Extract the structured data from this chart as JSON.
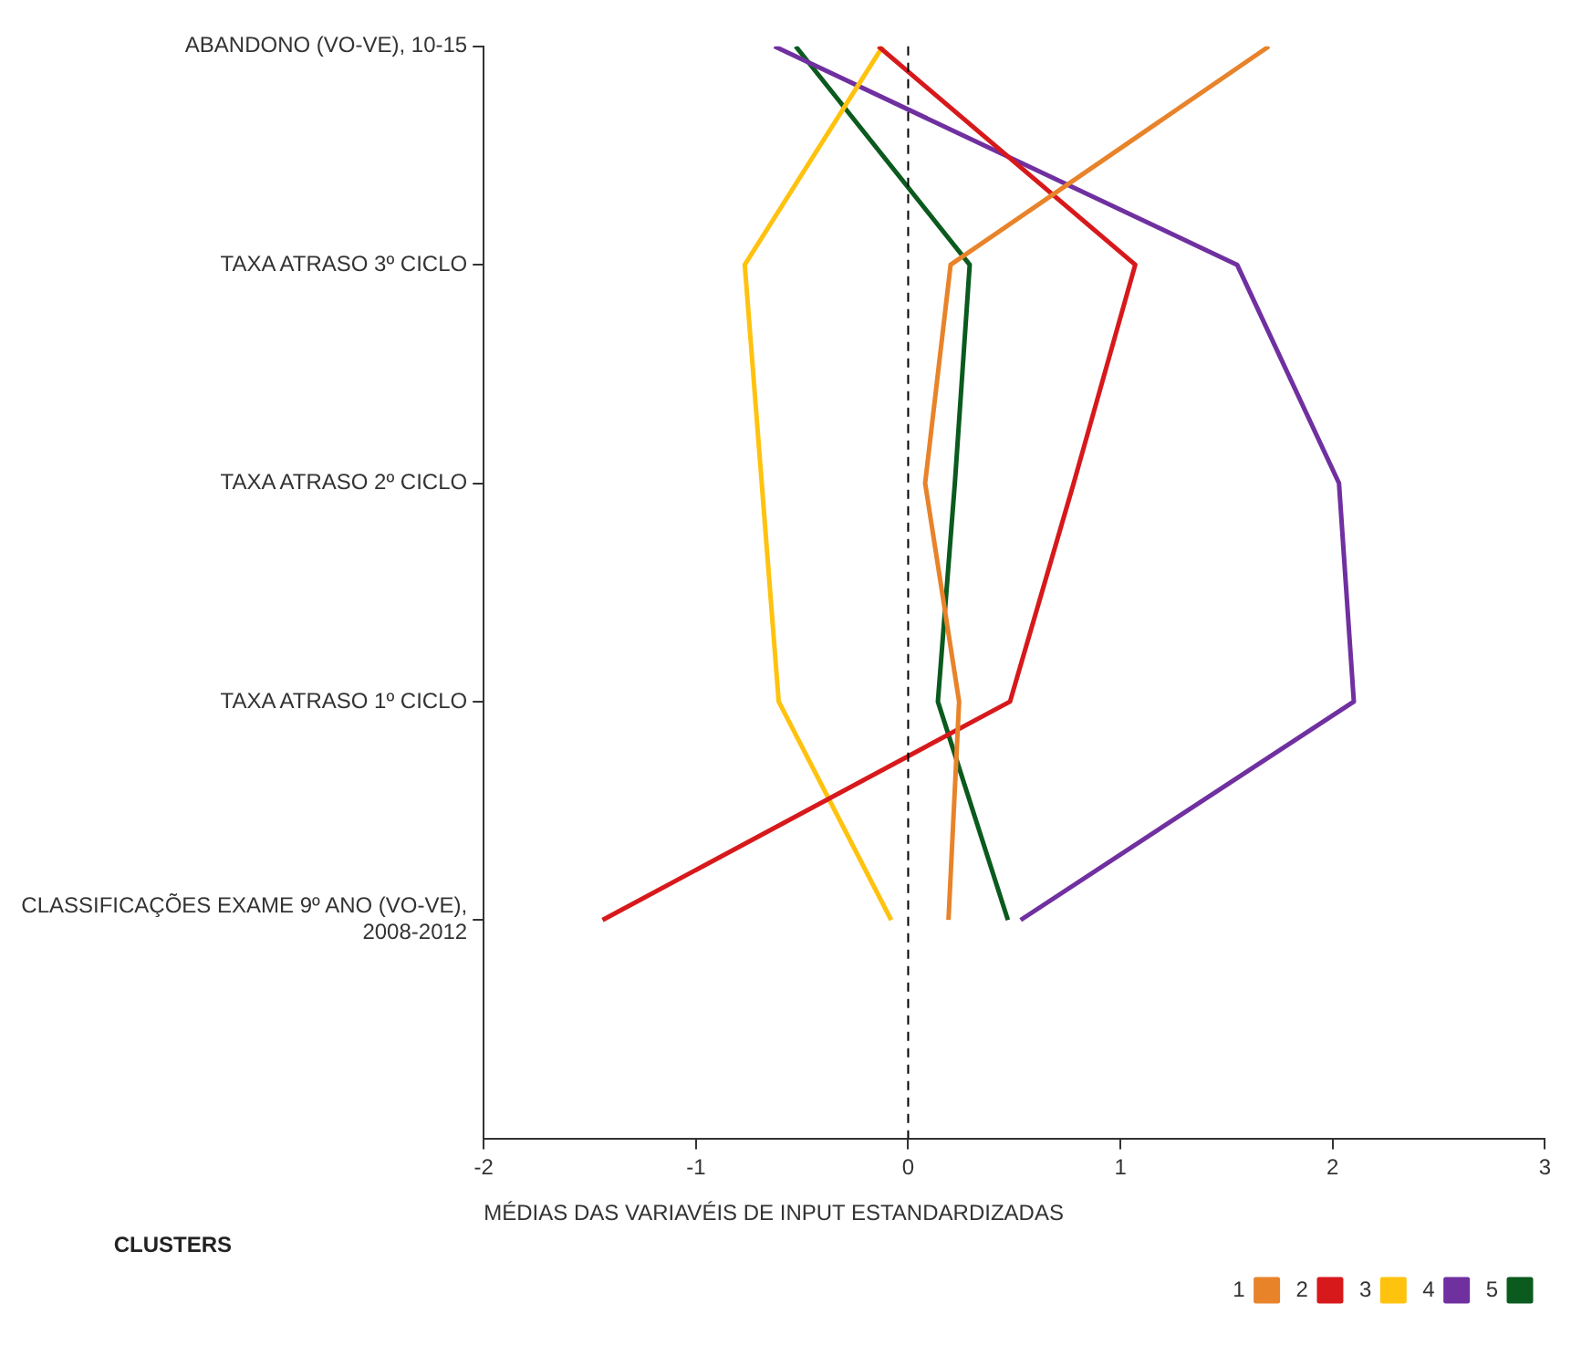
{
  "chart_data": {
    "type": "line",
    "xlabel": "MÉDIAS DAS VARIAVÉIS DE INPUT ESTANDARDIZADAS",
    "legend_title": "CLUSTERS",
    "categories": [
      "ABANDONO (VO-VE), 10-15",
      "TAXA ATRASO 3º CICLO",
      "TAXA ATRASO 2º CICLO",
      "TAXA ATRASO 1º CICLO",
      "CLASSIFICAÇÕES EXAME 9º ANO (VO-VE), 2008-2012"
    ],
    "series": [
      {
        "name": "1",
        "color": "#e8832a",
        "values": [
          1.7,
          0.2,
          0.08,
          0.24,
          0.19
        ]
      },
      {
        "name": "2",
        "color": "#d7191c",
        "values": [
          -0.14,
          1.07,
          0.78,
          0.48,
          -1.44
        ]
      },
      {
        "name": "3",
        "color": "#ffc20e",
        "values": [
          -0.12,
          -0.77,
          -0.69,
          -0.61,
          -0.08
        ]
      },
      {
        "name": "4",
        "color": "#7030a0",
        "values": [
          -0.63,
          1.55,
          2.03,
          2.1,
          0.53
        ]
      },
      {
        "name": "5",
        "color": "#0b5a1e",
        "values": [
          -0.53,
          0.29,
          0.22,
          0.14,
          0.47
        ]
      }
    ],
    "xlim": [
      -2,
      3
    ],
    "xticks": [
      -2,
      -1,
      0,
      1,
      2,
      3
    ],
    "ref_lines": [
      {
        "axis": "x",
        "value": 0,
        "line_style": "dashed",
        "color": "#000000"
      }
    ],
    "orientation": "horizontal",
    "grid": false,
    "legend": "bottom right",
    "marker": "none",
    "line_style": "solid"
  }
}
